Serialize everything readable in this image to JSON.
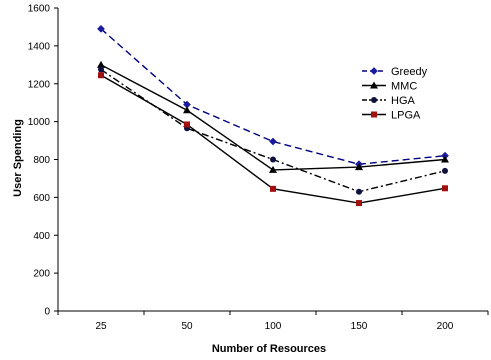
{
  "chart_data": {
    "type": "line",
    "title": "",
    "xlabel": "Number of Resources",
    "ylabel": "User Spending",
    "categories": [
      "25",
      "50",
      "100",
      "150",
      "200"
    ],
    "ylim": [
      0,
      1600
    ],
    "yticks": [
      0,
      200,
      400,
      600,
      800,
      1000,
      1200,
      1400,
      1600
    ],
    "grid": false,
    "legend_position": "right",
    "series": [
      {
        "name": "Greedy",
        "values": [
          1490,
          1090,
          895,
          775,
          820
        ],
        "color": "#000080",
        "dash": "dashed",
        "marker": "diamond"
      },
      {
        "name": "MMC",
        "values": [
          1300,
          1060,
          745,
          760,
          800
        ],
        "color": "#000000",
        "dash": "solid",
        "marker": "triangle"
      },
      {
        "name": "HGA",
        "values": [
          1275,
          965,
          800,
          630,
          740
        ],
        "color": "#000000",
        "dash": "dashdot",
        "marker": "circle"
      },
      {
        "name": "LPGA",
        "values": [
          1245,
          985,
          645,
          570,
          648
        ],
        "color": "#000000",
        "dash": "solid",
        "marker": "square"
      }
    ],
    "marker_colors": {
      "diamond": "#1a1aa0",
      "triangle": "#000000",
      "circle": "#101040",
      "square": "#a01010"
    }
  }
}
